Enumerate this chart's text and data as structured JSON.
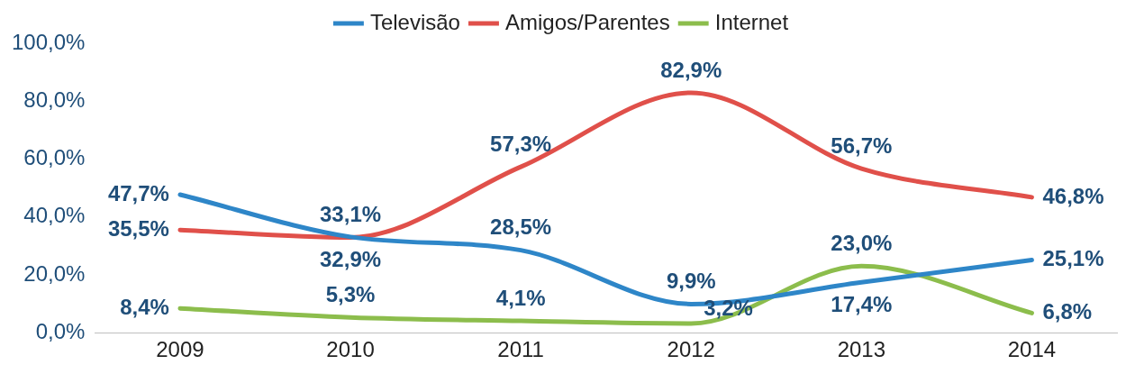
{
  "chart_data": {
    "type": "line",
    "categories": [
      "2009",
      "2010",
      "2011",
      "2012",
      "2013",
      "2014"
    ],
    "series": [
      {
        "name": "Televisão",
        "color": "#2e86c8",
        "values": [
          47.7,
          33.1,
          28.5,
          9.9,
          17.4,
          25.1
        ],
        "value_labels": [
          "47,7%",
          "33,1%",
          "28,5%",
          "9,9%",
          "17,4%",
          "25,1%"
        ]
      },
      {
        "name": "Amigos/Parentes",
        "color": "#e0504a",
        "values": [
          35.5,
          32.9,
          57.3,
          82.9,
          56.7,
          46.8
        ],
        "value_labels": [
          "35,5%",
          "32,9%",
          "57,3%",
          "82,9%",
          "56,7%",
          "46,8%"
        ]
      },
      {
        "name": "Internet",
        "color": "#8cbd4c",
        "values": [
          8.4,
          5.3,
          4.1,
          3.2,
          23.0,
          6.8
        ],
        "value_labels": [
          "8,4%",
          "5,3%",
          "4,1%",
          "3,2%",
          "23,0%",
          "6,8%"
        ]
      }
    ],
    "ylim": [
      0,
      100
    ],
    "yticks": [
      {
        "value": 0,
        "label": "0,0%"
      },
      {
        "value": 20,
        "label": "20,0%"
      },
      {
        "value": 40,
        "label": "40,0%"
      },
      {
        "value": 60,
        "label": "60,0%"
      },
      {
        "value": 80,
        "label": "80,0%"
      },
      {
        "value": 100,
        "label": "100,0%"
      }
    ],
    "grid": false,
    "legend": "top",
    "marker": "none"
  }
}
